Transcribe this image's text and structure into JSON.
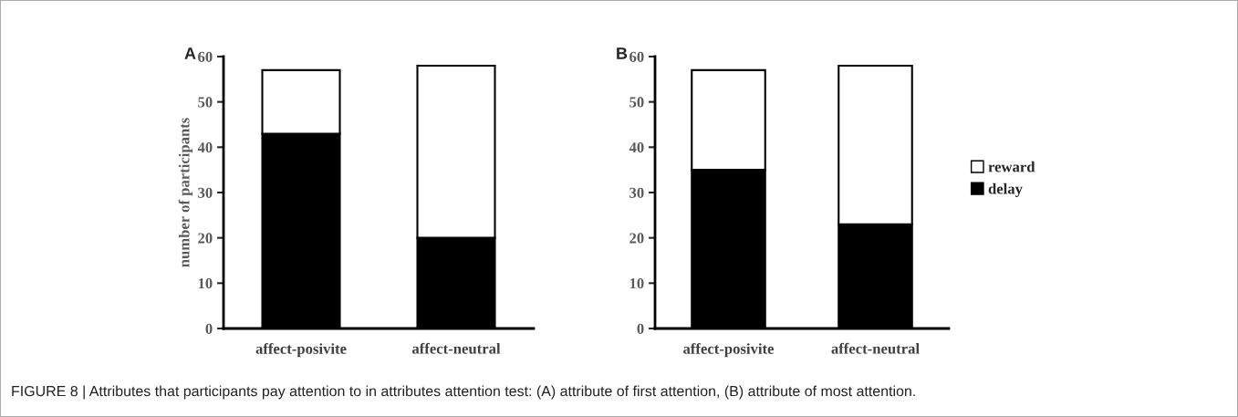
{
  "chart_data": [
    {
      "type": "bar",
      "title": "A",
      "ylabel": "number of participants",
      "categories": [
        "affect-posivite",
        "affect-neutral"
      ],
      "stacked": true,
      "series": [
        {
          "color": "#000000",
          "values": [
            43,
            20
          ]
        },
        {
          "color": "#ffffff",
          "values": [
            14,
            38
          ]
        }
      ],
      "ylim": [
        0,
        60
      ],
      "yticks": [
        0,
        10,
        20,
        30,
        40,
        50,
        60
      ],
      "annotations": [
        "FIGURE 8 | Attributes that participants pay attention to in attributes attention test: (A) attribute of first attention, (B) attribute of most attention."
      ]
    },
    {
      "type": "bar",
      "title": "B",
      "categories": [
        "affect-posivite",
        "affect-neutral"
      ],
      "stacked": true,
      "series": [
        {
          "name": "delay",
          "color": "#000000",
          "values": [
            35,
            23
          ]
        },
        {
          "name": "reward",
          "color": "#ffffff",
          "values": [
            22,
            35
          ]
        }
      ],
      "ylim": [
        0,
        60
      ],
      "yticks": [
        0,
        10,
        20,
        30,
        40,
        50,
        60
      ],
      "legend": "right"
    }
  ]
}
